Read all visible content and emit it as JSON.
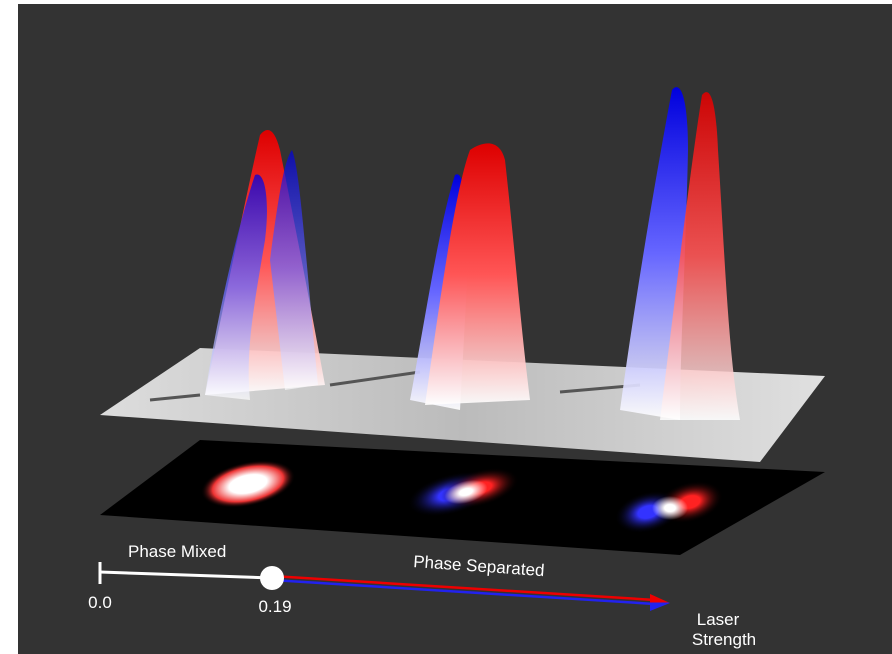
{
  "scale": {
    "start_label": "0.0",
    "transition_label": "0.19",
    "regions": [
      "Phase Mixed",
      "Phase Separated"
    ],
    "axis_label": [
      "Laser",
      "Strength"
    ]
  }
}
